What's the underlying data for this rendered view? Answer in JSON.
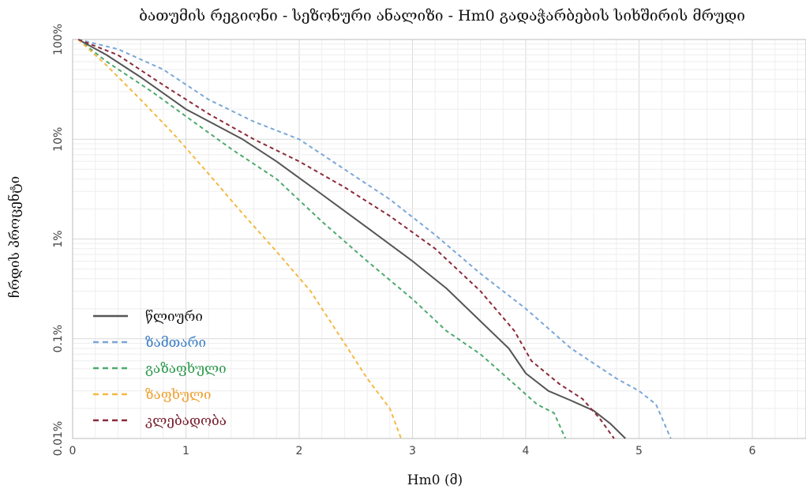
{
  "chart_data": {
    "type": "line",
    "title": "ბათუმის რეგიონი - სეზონური ანალიზი - Hm0 გადაჭარბების სიხშირის მრუდი",
    "xlabel": "Hm0 (მ)",
    "ylabel": "ჩრდის პროცენტი",
    "xlim": [
      0,
      6.5
    ],
    "ylim": [
      0.01,
      100
    ],
    "yscale": "log",
    "grid": true,
    "legend_position": "bottom-left",
    "x_ticks": [
      "0",
      "1",
      "2",
      "3",
      "4",
      "5",
      "6"
    ],
    "y_ticks": [
      "100%",
      "10%",
      "1%",
      "0.1%",
      "0.01%"
    ],
    "series": [
      {
        "name": "წლიური",
        "color": "#555555",
        "style": "solid",
        "x": [
          0.05,
          0.3,
          0.6,
          1.0,
          1.5,
          1.8,
          2.2,
          2.6,
          3.0,
          3.3,
          3.6,
          3.85,
          4.0,
          4.2,
          4.4,
          4.6,
          4.75,
          4.88
        ],
        "y": [
          100,
          70,
          42,
          20,
          10,
          6,
          2.8,
          1.3,
          0.6,
          0.32,
          0.15,
          0.08,
          0.045,
          0.03,
          0.024,
          0.019,
          0.014,
          0.01
        ]
      },
      {
        "name": "ზამთარი",
        "color": "#7ba7d8",
        "style": "dashed",
        "x": [
          0.05,
          0.4,
          0.8,
          1.2,
          1.6,
          2.0,
          2.4,
          2.8,
          3.2,
          3.6,
          4.0,
          4.4,
          4.8,
          5.0,
          5.15,
          5.28
        ],
        "y": [
          100,
          80,
          50,
          25,
          15,
          10,
          5,
          2.5,
          1.1,
          0.45,
          0.2,
          0.08,
          0.04,
          0.03,
          0.022,
          0.01
        ]
      },
      {
        "name": "გაზაფხული",
        "color": "#4daa6e",
        "style": "dashed",
        "x": [
          0.05,
          0.3,
          0.7,
          1.0,
          1.4,
          1.8,
          2.2,
          2.6,
          3.0,
          3.3,
          3.6,
          3.9,
          4.1,
          4.25,
          4.35
        ],
        "y": [
          100,
          60,
          30,
          17,
          8,
          4,
          1.5,
          0.6,
          0.25,
          0.12,
          0.07,
          0.035,
          0.022,
          0.018,
          0.01
        ]
      },
      {
        "name": "ზაფხული",
        "color": "#f4b942",
        "style": "dashed",
        "x": [
          0.05,
          0.3,
          0.6,
          0.9,
          1.2,
          1.5,
          1.8,
          2.1,
          2.4,
          2.6,
          2.8,
          2.9
        ],
        "y": [
          100,
          55,
          25,
          11,
          4.5,
          1.8,
          0.75,
          0.3,
          0.09,
          0.04,
          0.02,
          0.01
        ]
      },
      {
        "name": "კლებადობა",
        "color": "#8b2a3a",
        "style": "dashed",
        "x": [
          0.05,
          0.4,
          0.8,
          1.2,
          1.6,
          2.0,
          2.4,
          2.8,
          3.2,
          3.6,
          3.9,
          4.05,
          4.3,
          4.5,
          4.65,
          4.78
        ],
        "y": [
          100,
          70,
          35,
          18,
          10,
          6,
          3.3,
          1.7,
          0.8,
          0.3,
          0.12,
          0.06,
          0.035,
          0.025,
          0.016,
          0.01
        ]
      }
    ]
  }
}
